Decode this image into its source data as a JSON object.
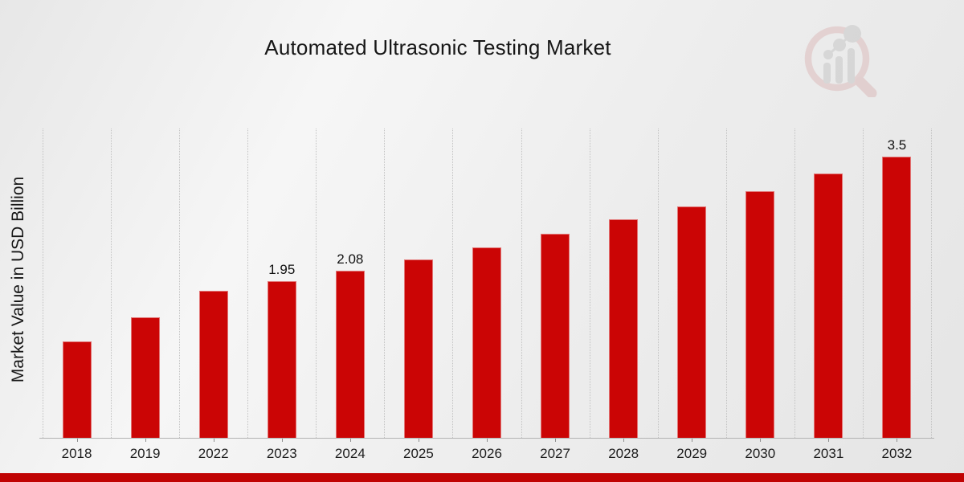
{
  "page": {
    "title": "Automated Ultrasonic Testing Market",
    "watermark_name": "market-research-future-logo"
  },
  "chart_data": {
    "type": "bar",
    "title": "Automated Ultrasonic Testing Market",
    "xlabel": "",
    "ylabel": "Market Value in USD Billion",
    "categories": [
      "2018",
      "2019",
      "2022",
      "2023",
      "2024",
      "2025",
      "2026",
      "2027",
      "2028",
      "2029",
      "2030",
      "2031",
      "2032"
    ],
    "values": [
      1.2,
      1.5,
      1.83,
      1.95,
      2.08,
      2.22,
      2.37,
      2.54,
      2.72,
      2.88,
      3.07,
      3.29,
      3.5
    ],
    "bar_labels": [
      "",
      "",
      "",
      "1.95",
      "2.08",
      "",
      "",
      "",
      "",
      "",
      "",
      "",
      "3.5"
    ],
    "ylim": [
      0,
      3.85
    ],
    "grid": "vertical-dotted",
    "legend": "none",
    "y_tick_labels": "none"
  },
  "colors": {
    "bar": "#cb0505",
    "bottom_stripe": "#c00303",
    "gridline": "#c2c2c2",
    "axis_line": "#b3b3b3",
    "text": "#161616",
    "background": "#ececec",
    "watermark_ring": "#dcb9b9",
    "watermark_bars": "#c4c4c4"
  }
}
